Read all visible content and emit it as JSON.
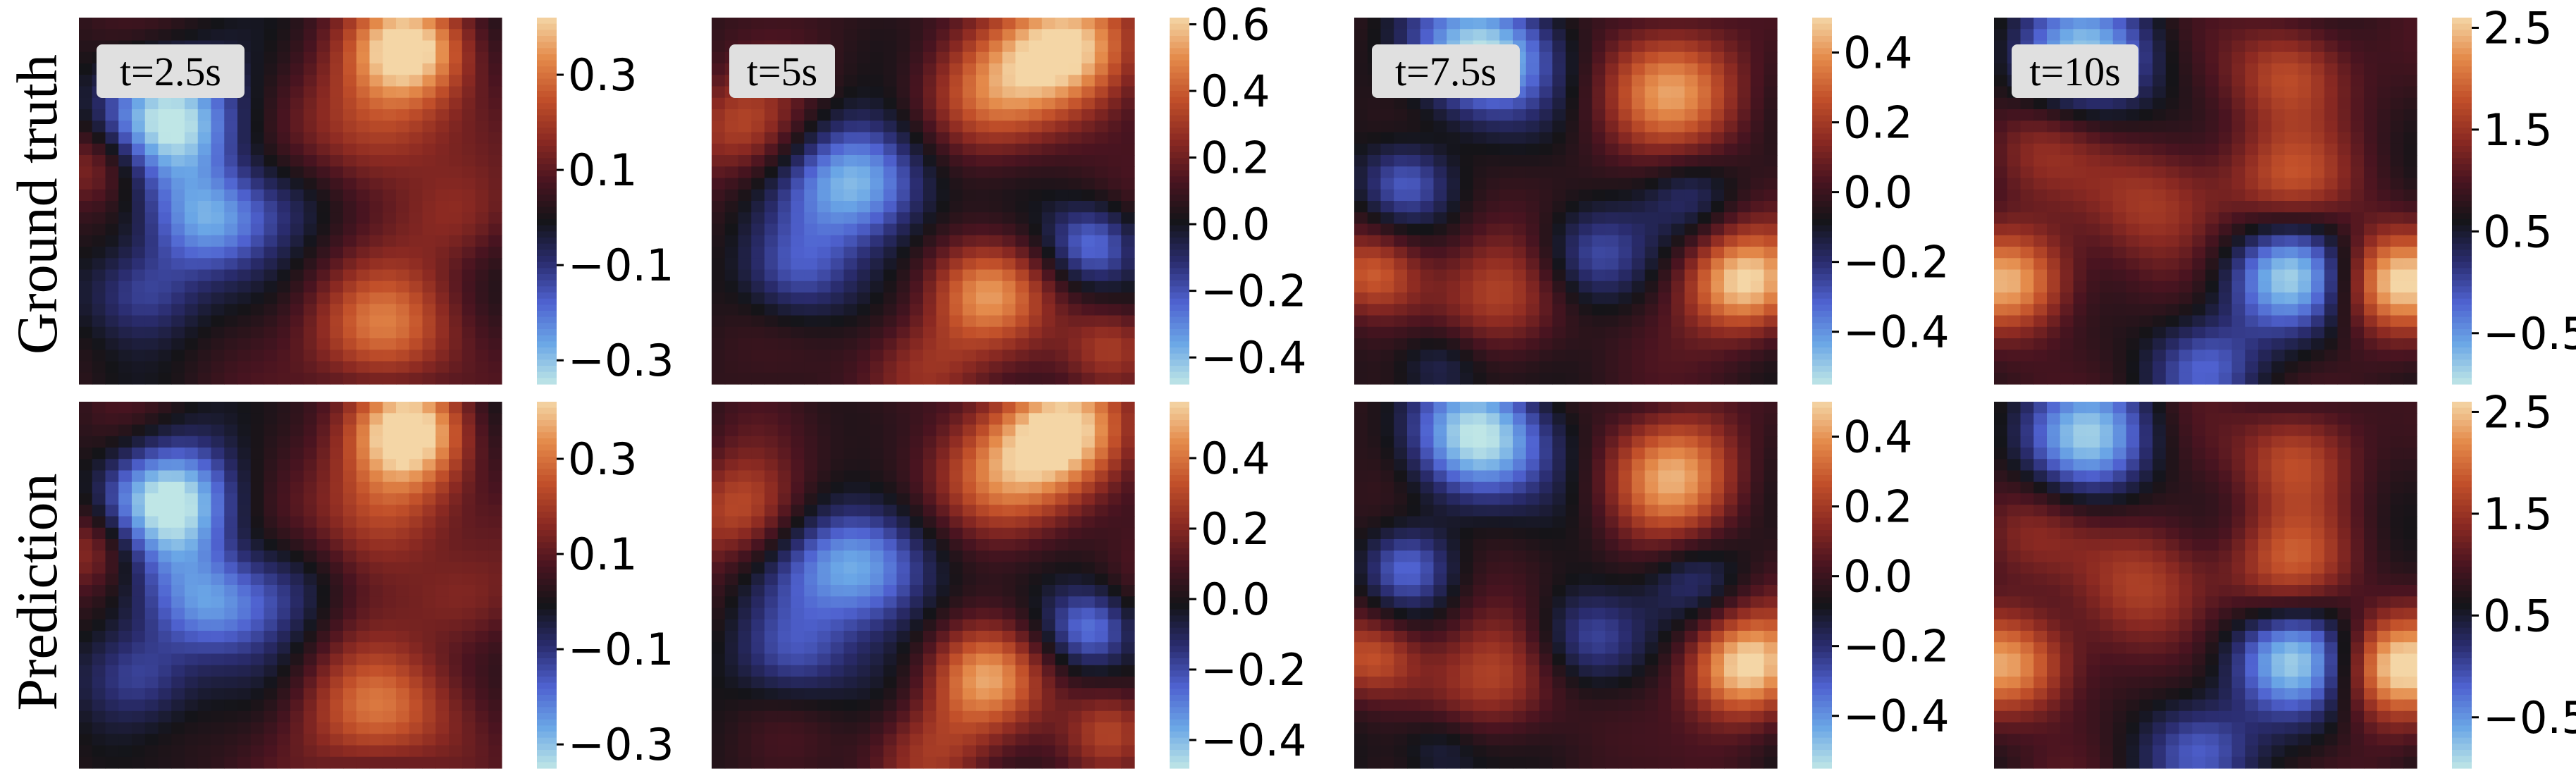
{
  "figure": {
    "row_labels": [
      "Ground truth",
      "Prediction"
    ],
    "time_labels": [
      "t=2.5s",
      "t=5s",
      "t=7.5s",
      "t=10s"
    ]
  },
  "colors": {
    "colormap": [
      "#bfe6e6",
      "#6aa6e6",
      "#4f62d0",
      "#2a2c6e",
      "#141418",
      "#4a1420",
      "#8c2a22",
      "#c2502a",
      "#e48a4a",
      "#f4d6a6"
    ],
    "label_box": "#e0e0e0"
  },
  "chart_data": [
    {
      "type": "heatmap",
      "row": "Ground truth",
      "time": "t=2.5s",
      "field_mode": 0,
      "value_range": [
        -0.35,
        0.42
      ],
      "colorbar_ticks": [
        {
          "value": 0.3,
          "label": "0.3"
        },
        {
          "value": 0.1,
          "label": "0.1"
        },
        {
          "value": -0.1,
          "label": "−0.1"
        },
        {
          "value": -0.3,
          "label": "−0.3"
        }
      ]
    },
    {
      "type": "heatmap",
      "row": "Ground truth",
      "time": "t=5s",
      "field_mode": 1,
      "value_range": [
        -0.48,
        0.62
      ],
      "colorbar_ticks": [
        {
          "value": 0.6,
          "label": "0.6"
        },
        {
          "value": 0.4,
          "label": "0.4"
        },
        {
          "value": 0.2,
          "label": "0.2"
        },
        {
          "value": 0.0,
          "label": "0.0"
        },
        {
          "value": -0.2,
          "label": "−0.2"
        },
        {
          "value": -0.4,
          "label": "−0.4"
        }
      ]
    },
    {
      "type": "heatmap",
      "row": "Ground truth",
      "time": "t=7.5s",
      "field_mode": 2,
      "value_range": [
        -0.55,
        0.5
      ],
      "colorbar_ticks": [
        {
          "value": 0.4,
          "label": "0.4"
        },
        {
          "value": 0.2,
          "label": "0.2"
        },
        {
          "value": 0.0,
          "label": "0.0"
        },
        {
          "value": -0.2,
          "label": "−0.2"
        },
        {
          "value": -0.4,
          "label": "−0.4"
        }
      ]
    },
    {
      "type": "heatmap",
      "row": "Ground truth",
      "time": "t=10s",
      "field_mode": 3,
      "value_range": [
        -1.0,
        2.6
      ],
      "colorbar_ticks": [
        {
          "value": 2.5,
          "label": "2.5"
        },
        {
          "value": 1.5,
          "label": "1.5"
        },
        {
          "value": 0.5,
          "label": "0.5"
        },
        {
          "value": -0.5,
          "label": "−0.5"
        }
      ]
    },
    {
      "type": "heatmap",
      "row": "Prediction",
      "time": "t=2.5s",
      "field_mode": 0,
      "value_range": [
        -0.35,
        0.42
      ],
      "colorbar_ticks": [
        {
          "value": 0.3,
          "label": "0.3"
        },
        {
          "value": 0.1,
          "label": "0.1"
        },
        {
          "value": -0.1,
          "label": "−0.1"
        },
        {
          "value": -0.3,
          "label": "−0.3"
        }
      ]
    },
    {
      "type": "heatmap",
      "row": "Prediction",
      "time": "t=5s",
      "field_mode": 1,
      "value_range": [
        -0.48,
        0.56
      ],
      "colorbar_ticks": [
        {
          "value": 0.4,
          "label": "0.4"
        },
        {
          "value": 0.2,
          "label": "0.2"
        },
        {
          "value": 0.0,
          "label": "0.0"
        },
        {
          "value": -0.2,
          "label": "−0.2"
        },
        {
          "value": -0.4,
          "label": "−0.4"
        }
      ]
    },
    {
      "type": "heatmap",
      "row": "Prediction",
      "time": "t=7.5s",
      "field_mode": 2,
      "value_range": [
        -0.55,
        0.5
      ],
      "colorbar_ticks": [
        {
          "value": 0.4,
          "label": "0.4"
        },
        {
          "value": 0.2,
          "label": "0.2"
        },
        {
          "value": 0.0,
          "label": "0.0"
        },
        {
          "value": -0.2,
          "label": "−0.2"
        },
        {
          "value": -0.4,
          "label": "−0.4"
        }
      ]
    },
    {
      "type": "heatmap",
      "row": "Prediction",
      "time": "t=10s",
      "field_mode": 3,
      "value_range": [
        -1.0,
        2.6
      ],
      "colorbar_ticks": [
        {
          "value": 2.5,
          "label": "2.5"
        },
        {
          "value": 1.5,
          "label": "1.5"
        },
        {
          "value": 0.5,
          "label": "0.5"
        },
        {
          "value": -0.5,
          "label": "−0.5"
        }
      ]
    }
  ]
}
